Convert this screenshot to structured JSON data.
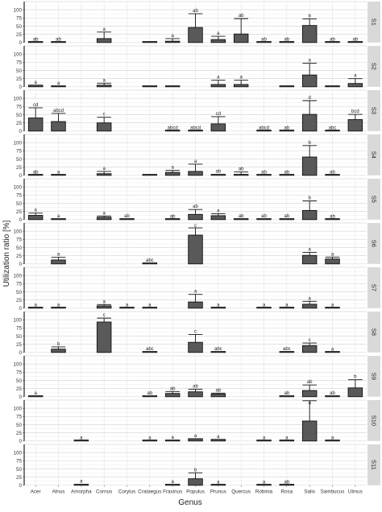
{
  "chart_data": {
    "type": "bar",
    "xlabel": "Genus",
    "ylabel": "Utilization ratio [%]",
    "categories": [
      "Acer",
      "Alnus",
      "Amorpha",
      "Cornus",
      "Corylus",
      "Crataegus",
      "Fraxinus",
      "Populus",
      "Prunus",
      "Quercus",
      "Robinia",
      "Rosa",
      "Salix",
      "Sambucus",
      "Ulmus"
    ],
    "y_ticks": [
      0,
      25,
      50,
      75,
      100
    ],
    "ylim": [
      0,
      125
    ],
    "grid": true,
    "facets": [
      {
        "name": "S1",
        "values": [
          1,
          1,
          null,
          12,
          null,
          1,
          4,
          46,
          9,
          26,
          1,
          1,
          52,
          1,
          1
        ],
        "errors": [
          0,
          0,
          null,
          20,
          null,
          0,
          8,
          42,
          10,
          47,
          0,
          0,
          20,
          0,
          0
        ],
        "letters": [
          "ab",
          "ab",
          "",
          "a",
          "",
          "",
          "a",
          "ab",
          "a",
          "ab",
          "ab",
          "ab",
          "b",
          "ab",
          "ab"
        ]
      },
      {
        "name": "S2",
        "values": [
          5,
          2,
          null,
          5,
          null,
          2,
          2,
          null,
          7,
          7,
          null,
          2,
          36,
          1,
          10
        ],
        "errors": [
          0,
          0,
          null,
          6,
          null,
          0,
          0,
          null,
          13,
          13,
          null,
          0,
          36,
          0,
          15
        ],
        "letters": [
          "a",
          "a",
          "",
          "a",
          "",
          "",
          "",
          "",
          "a",
          "a",
          "",
          "",
          "a",
          "",
          "a"
        ]
      },
      {
        "name": "S3",
        "values": [
          40,
          29,
          null,
          25,
          null,
          null,
          1,
          1,
          22,
          null,
          1,
          1,
          51,
          1,
          35
        ],
        "errors": [
          31,
          25,
          null,
          17,
          null,
          null,
          0,
          0,
          22,
          null,
          0,
          0,
          42,
          0,
          16
        ],
        "letters": [
          "cd",
          "abcd",
          "",
          "c",
          "",
          "",
          "abcd",
          "abcd",
          "cd",
          "",
          "abcd",
          "ab",
          "d",
          "abc",
          "bcd"
        ]
      },
      {
        "name": "S4",
        "values": [
          1,
          1,
          null,
          5,
          null,
          1,
          9,
          12,
          3,
          3,
          1,
          1,
          56,
          1,
          null
        ],
        "errors": [
          0,
          0,
          null,
          7,
          null,
          0,
          6,
          22,
          0,
          7,
          0,
          0,
          35,
          0,
          null
        ],
        "letters": [
          "ab",
          "a",
          "",
          "a",
          "",
          "",
          "a",
          "a",
          "ab",
          "ab",
          "ab",
          "ab",
          "b",
          "ab",
          ""
        ]
      },
      {
        "name": "S5",
        "values": [
          13,
          2,
          null,
          7,
          2,
          null,
          1,
          16,
          12,
          2,
          2,
          2,
          28,
          1,
          null
        ],
        "errors": [
          7,
          0,
          null,
          4,
          0,
          null,
          0,
          15,
          6,
          0,
          0,
          0,
          29,
          0,
          null
        ],
        "letters": [
          "a",
          "a",
          "",
          "a",
          "ab",
          "",
          "ab",
          "ab",
          "a",
          "ab",
          "ab",
          "ab",
          "b",
          "ab",
          ""
        ]
      },
      {
        "name": "S6",
        "values": [
          null,
          12,
          null,
          null,
          null,
          2,
          null,
          88,
          null,
          null,
          null,
          null,
          26,
          15,
          null
        ],
        "errors": [
          null,
          8,
          null,
          null,
          null,
          0,
          null,
          22,
          null,
          null,
          null,
          null,
          9,
          6,
          null
        ],
        "letters": [
          "",
          "a",
          "",
          "",
          "",
          "abc",
          "",
          "c",
          "",
          "",
          "",
          "",
          "a",
          "a",
          ""
        ]
      },
      {
        "name": "S7",
        "values": [
          1,
          1,
          null,
          7,
          1,
          1,
          null,
          19,
          1,
          null,
          1,
          1,
          12,
          1,
          null
        ],
        "errors": [
          0,
          0,
          null,
          4,
          0,
          0,
          null,
          23,
          0,
          null,
          0,
          0,
          9,
          0,
          null
        ],
        "letters": [
          "a",
          "a",
          "",
          "a",
          "a",
          "a",
          "",
          "a",
          "a",
          "",
          "a",
          "a",
          "a",
          "a",
          ""
        ]
      },
      {
        "name": "S8",
        "values": [
          null,
          10,
          null,
          93,
          null,
          2,
          null,
          31,
          2,
          null,
          null,
          2,
          21,
          1,
          null
        ],
        "errors": [
          null,
          7,
          null,
          12,
          null,
          0,
          null,
          24,
          0,
          null,
          null,
          0,
          8,
          0,
          null
        ],
        "letters": [
          "",
          "b",
          "",
          "c",
          "",
          "abc",
          "",
          "c",
          "abc",
          "",
          "",
          "abc",
          "c",
          "a",
          ""
        ]
      },
      {
        "name": "S9",
        "values": [
          2,
          null,
          null,
          null,
          null,
          2,
          10,
          15,
          8,
          null,
          null,
          2,
          19,
          2,
          27
        ],
        "errors": [
          0,
          null,
          null,
          null,
          null,
          0,
          6,
          8,
          3,
          null,
          null,
          0,
          17,
          0,
          25
        ],
        "letters": [
          "a",
          "",
          "",
          "",
          "",
          "ab",
          "ab",
          "ab",
          "ab",
          "",
          "",
          "ab",
          "ab",
          "ab",
          "b"
        ]
      },
      {
        "name": "S10",
        "values": [
          null,
          null,
          1,
          null,
          null,
          1,
          2,
          7,
          5,
          null,
          1,
          1,
          61,
          1,
          null
        ],
        "errors": [
          null,
          null,
          0,
          null,
          null,
          0,
          0,
          0,
          0,
          null,
          0,
          0,
          62,
          0,
          null
        ],
        "letters": [
          "",
          "",
          "a",
          "",
          "",
          "a",
          "a",
          "a",
          "a",
          "",
          "a",
          "a",
          "a",
          "a",
          ""
        ]
      },
      {
        "name": "S11",
        "values": [
          null,
          null,
          3,
          null,
          null,
          null,
          2,
          20,
          1,
          null,
          1,
          1,
          null,
          null,
          null
        ],
        "errors": [
          null,
          null,
          0,
          null,
          null,
          null,
          0,
          18,
          0,
          null,
          0,
          0,
          null,
          null,
          null
        ],
        "letters": [
          "",
          "",
          "a",
          "",
          "",
          "",
          "a",
          "b",
          "a",
          "",
          "a",
          "ab",
          "",
          "",
          ""
        ]
      }
    ]
  }
}
